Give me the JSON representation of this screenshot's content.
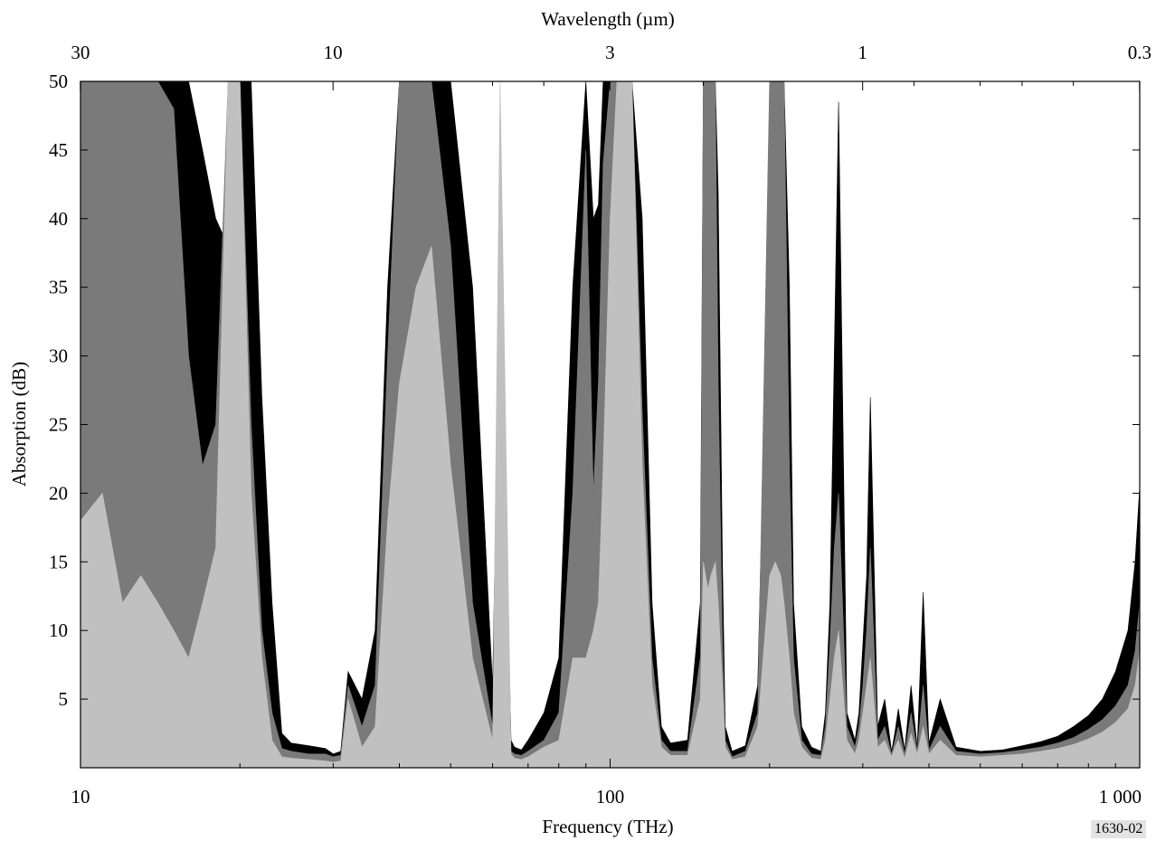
{
  "figure_id": "1630-02",
  "chart_data": {
    "type": "area",
    "xlabel": "Frequency (THz)",
    "ylabel": "Absorption (dB)",
    "top_axis_label": "Wavelength (µm)",
    "x_scale": "log",
    "xlim": [
      10,
      1000
    ],
    "ylim": [
      0,
      50
    ],
    "x_ticks": [
      {
        "value": 10,
        "label": "10"
      },
      {
        "value": 100,
        "label": "100"
      },
      {
        "value": 1000,
        "label": "1 000"
      }
    ],
    "y_ticks": [
      {
        "value": 5,
        "label": "5"
      },
      {
        "value": 10,
        "label": "10"
      },
      {
        "value": 15,
        "label": "15"
      },
      {
        "value": 20,
        "label": "20"
      },
      {
        "value": 25,
        "label": "25"
      },
      {
        "value": 30,
        "label": "30"
      },
      {
        "value": 35,
        "label": "35"
      },
      {
        "value": 40,
        "label": "40"
      },
      {
        "value": 45,
        "label": "45"
      },
      {
        "value": 50,
        "label": "50"
      }
    ],
    "top_ticks": [
      {
        "value": 30,
        "label": "30"
      },
      {
        "value": 10,
        "label": "10"
      },
      {
        "value": 3,
        "label": "3"
      },
      {
        "value": 1,
        "label": "1"
      },
      {
        "value": 0.3,
        "label": "0.3"
      }
    ],
    "grid": false,
    "colors": {
      "series_1": "#000000",
      "series_2": "#7a7a7a",
      "series_3": "#c0c0c0"
    },
    "series": [
      {
        "color": "#000000",
        "x": [
          10,
          11,
          12,
          13,
          14,
          15,
          16,
          17,
          18,
          19,
          20,
          21,
          22,
          23,
          24,
          25,
          27,
          29,
          30,
          31,
          32,
          34,
          36,
          38,
          40,
          43,
          46,
          50,
          55,
          60,
          62,
          65,
          66,
          68,
          70,
          75,
          80,
          85,
          90,
          93,
          95,
          97,
          100,
          103,
          106,
          110,
          115,
          120,
          125,
          130,
          140,
          148,
          150,
          153,
          155,
          158,
          160,
          163,
          165,
          170,
          180,
          190,
          200,
          205,
          210,
          213,
          218,
          222,
          230,
          240,
          250,
          255,
          260,
          265,
          270,
          280,
          290,
          295,
          300,
          305,
          310,
          320,
          330,
          340,
          345,
          350,
          360,
          370,
          380,
          390,
          400,
          420,
          450,
          500,
          550,
          600,
          650,
          700,
          750,
          800,
          850,
          900,
          950,
          980,
          1000
        ],
        "values": [
          50,
          50,
          50,
          50,
          50,
          50,
          50,
          45,
          40,
          38,
          50,
          50,
          27,
          12,
          2.5,
          1.8,
          1.6,
          1.4,
          1.0,
          1.2,
          7,
          5,
          10,
          35,
          50,
          50,
          50,
          50,
          35,
          6,
          36,
          2.0,
          1.5,
          1.3,
          2.0,
          4,
          8,
          35,
          50,
          40,
          41,
          50,
          50,
          50,
          50,
          50,
          40,
          12,
          3,
          1.8,
          2,
          12,
          50,
          50,
          50,
          50,
          42,
          15,
          3,
          1.2,
          1.6,
          6,
          42,
          50,
          50,
          50,
          35,
          12,
          3,
          1.5,
          1.2,
          4,
          12,
          30,
          48.5,
          4,
          2,
          4,
          9,
          14,
          27,
          3,
          5,
          1.2,
          2.6,
          4.3,
          1.3,
          6,
          1.5,
          12.8,
          1.8,
          5,
          1.5,
          1.2,
          1.3,
          1.6,
          1.9,
          2.3,
          3.0,
          3.8,
          5.0,
          7.0,
          10.0,
          15.0,
          20.5
        ]
      },
      {
        "color": "#7a7a7a",
        "x": [
          10,
          11,
          12,
          13,
          14,
          15,
          16,
          17,
          18,
          19,
          20,
          21,
          22,
          23,
          24,
          25,
          27,
          29,
          30,
          31,
          32,
          34,
          36,
          38,
          40,
          43,
          46,
          50,
          55,
          60,
          62,
          65,
          66,
          68,
          70,
          75,
          80,
          85,
          90,
          93,
          95,
          97,
          100,
          103,
          106,
          110,
          115,
          120,
          125,
          130,
          140,
          148,
          150,
          153,
          155,
          158,
          160,
          163,
          165,
          170,
          180,
          190,
          200,
          205,
          210,
          213,
          218,
          222,
          230,
          240,
          250,
          255,
          260,
          265,
          270,
          280,
          290,
          295,
          300,
          305,
          310,
          320,
          330,
          340,
          345,
          350,
          360,
          370,
          380,
          390,
          400,
          420,
          450,
          500,
          550,
          600,
          650,
          700,
          750,
          800,
          850,
          900,
          950,
          980,
          1000
        ],
        "values": [
          50,
          50,
          50,
          50,
          50,
          48,
          30,
          22,
          25,
          50,
          50,
          25,
          10,
          4,
          1.4,
          1.2,
          1.0,
          1.0,
          0.8,
          0.9,
          6,
          3,
          6,
          30,
          50,
          50,
          50,
          38,
          12,
          3,
          8,
          1.2,
          1.0,
          0.9,
          1.2,
          2,
          4,
          20,
          45,
          20,
          28,
          44,
          50,
          50,
          50,
          50,
          26,
          8,
          2,
          1.2,
          1.2,
          8,
          50,
          50,
          50,
          50,
          28,
          9,
          2,
          0.8,
          1.2,
          4,
          50,
          50,
          50,
          50,
          22,
          8,
          2,
          1.0,
          0.9,
          3,
          9,
          16,
          20,
          3,
          1.5,
          3,
          6,
          10,
          16,
          2,
          3,
          1.0,
          2.0,
          3,
          1.0,
          4,
          1.2,
          6,
          1.3,
          3,
          1.2,
          1.0,
          1.1,
          1.3,
          1.5,
          1.8,
          2.2,
          2.8,
          3.5,
          4.5,
          6.0,
          8.5,
          12.0
        ]
      },
      {
        "color": "#c0c0c0",
        "x": [
          10,
          11,
          12,
          13,
          14,
          15,
          16,
          17,
          18,
          19,
          20,
          21,
          22,
          23,
          24,
          25,
          27,
          29,
          30,
          31,
          32,
          34,
          36,
          38,
          40,
          43,
          46,
          50,
          55,
          60,
          62,
          65,
          66,
          68,
          70,
          75,
          80,
          85,
          90,
          93,
          95,
          97,
          100,
          103,
          106,
          110,
          115,
          120,
          125,
          130,
          140,
          148,
          150,
          153,
          155,
          158,
          160,
          163,
          165,
          170,
          180,
          190,
          200,
          205,
          210,
          213,
          218,
          222,
          230,
          240,
          250,
          255,
          260,
          265,
          270,
          280,
          290,
          295,
          300,
          305,
          310,
          320,
          330,
          340,
          345,
          350,
          360,
          370,
          380,
          390,
          400,
          420,
          450,
          500,
          550,
          600,
          650,
          700,
          750,
          800,
          850,
          900,
          950,
          980,
          1000
        ],
        "values": [
          18,
          20,
          12,
          14,
          12,
          10,
          8,
          12,
          16,
          50,
          50,
          20,
          8,
          2,
          0.8,
          0.7,
          0.6,
          0.5,
          0.4,
          0.5,
          5,
          1.5,
          3,
          18,
          28,
          35,
          38,
          22,
          8,
          2,
          50,
          1.0,
          0.7,
          0.6,
          0.8,
          1.5,
          2,
          8,
          8,
          10,
          12,
          22,
          40,
          50,
          50,
          50,
          22,
          6,
          1.5,
          0.9,
          0.9,
          5,
          15,
          13,
          14,
          15,
          12,
          6,
          1.5,
          0.6,
          0.8,
          3,
          14,
          15,
          14,
          12,
          8,
          4,
          1.5,
          0.7,
          0.6,
          2,
          5,
          8,
          10,
          2,
          1.0,
          2,
          4,
          6,
          8,
          1.5,
          2,
          0.8,
          1.5,
          2,
          0.7,
          2.5,
          1.0,
          3,
          1.0,
          2,
          0.9,
          0.8,
          0.9,
          1.0,
          1.2,
          1.4,
          1.7,
          2.1,
          2.6,
          3.3,
          4.3,
          6.0,
          8.5
        ]
      }
    ]
  }
}
